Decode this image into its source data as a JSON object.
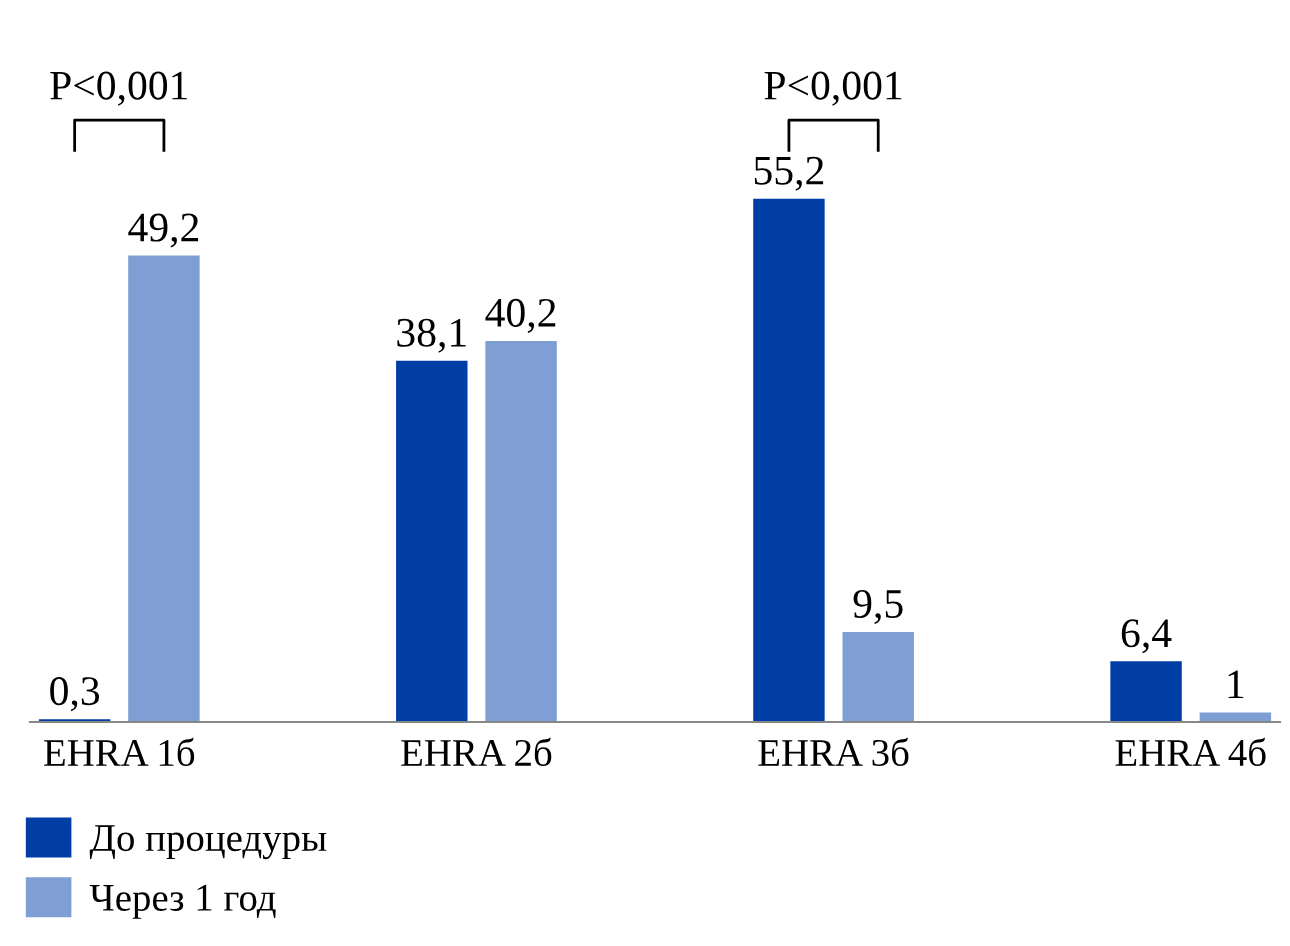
{
  "chart_data": {
    "type": "bar",
    "categories": [
      "EHRA 1б",
      "EHRA 2б",
      "EHRA 3б",
      "EHRA 4б"
    ],
    "series": [
      {
        "name": "До процедуры",
        "color": "#003da5",
        "values": [
          0.3,
          38.1,
          55.2,
          6.4
        ],
        "value_labels": [
          "0,3",
          "38,1",
          "55,2",
          "6,4"
        ]
      },
      {
        "name": "Через 1 год",
        "color": "#7f9fd4",
        "values": [
          49.2,
          40.2,
          9.5,
          1
        ],
        "value_labels": [
          "49,2",
          "40,2",
          "9,5",
          "1"
        ]
      }
    ],
    "annotations": [
      "P<0,001",
      "P<0,001"
    ],
    "legend": "bottom left",
    "grid": false
  }
}
